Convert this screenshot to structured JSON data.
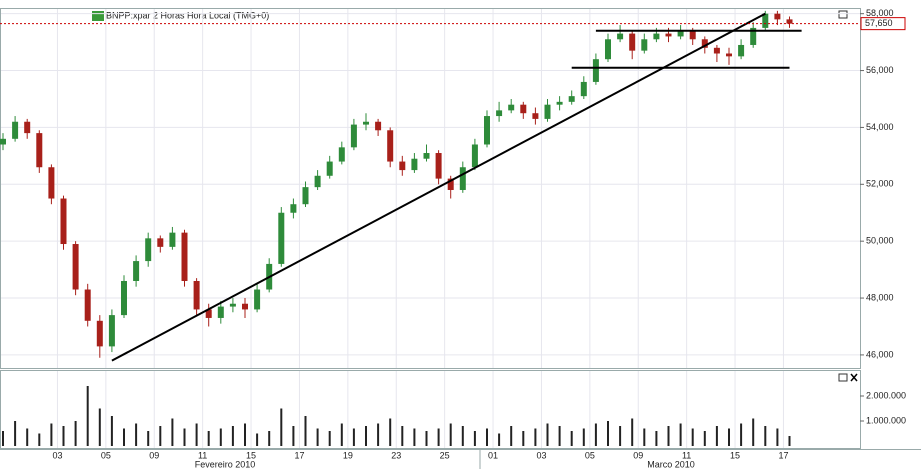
{
  "chart_data": {
    "type": "candlestick",
    "title": "BNPP:xpar 2 Horas Hora Local (TMG+0)",
    "categories": [
      null,
      null,
      null,
      null,
      null,
      "03",
      null,
      null,
      null,
      "05",
      null,
      null,
      null,
      "09",
      null,
      null,
      null,
      "11",
      null,
      null,
      null,
      "15",
      null,
      null,
      null,
      "17",
      null,
      null,
      null,
      "19",
      null,
      null,
      null,
      "23",
      null,
      null,
      null,
      "25",
      null,
      null,
      null,
      "01",
      null,
      null,
      null,
      "03",
      null,
      null,
      null,
      "05",
      null,
      null,
      null,
      "09",
      null,
      null,
      null,
      "11",
      null,
      null,
      null,
      "15",
      null,
      null,
      null,
      "17"
    ],
    "months": [
      "Fevereiro 2010",
      "Marco 2010"
    ],
    "open": [
      53400,
      53600,
      54200,
      53800,
      52600,
      51500,
      49900,
      48300,
      47200,
      46300,
      47400,
      48600,
      49300,
      50100,
      49800,
      50300,
      48600,
      47600,
      47300,
      47700,
      47800,
      47600,
      48300,
      49200,
      51000,
      51300,
      51900,
      52300,
      52800,
      53300,
      54100,
      54200,
      53900,
      52800,
      52500,
      52900,
      53100,
      52200,
      51800,
      52600,
      53400,
      54400,
      54600,
      54800,
      54500,
      54300,
      54800,
      54900,
      55100,
      55600,
      56400,
      57100,
      57300,
      56700,
      57100,
      57300,
      57200,
      57400,
      57100,
      56800,
      56600,
      56500,
      56900,
      57500,
      58000,
      57800
    ],
    "high": [
      53800,
      54400,
      54300,
      53900,
      52700,
      51600,
      50000,
      48500,
      47400,
      47600,
      48800,
      49500,
      50300,
      50200,
      50500,
      50400,
      48700,
      47800,
      47900,
      48000,
      48000,
      48500,
      49400,
      51200,
      51500,
      52100,
      52500,
      53000,
      53500,
      54300,
      54500,
      54300,
      54000,
      53000,
      53100,
      53400,
      53200,
      52300,
      52800,
      53600,
      54600,
      54900,
      55000,
      54900,
      54700,
      55000,
      55100,
      55300,
      55800,
      56600,
      57300,
      57600,
      57400,
      57300,
      57500,
      57500,
      57600,
      57500,
      57200,
      56900,
      56800,
      57100,
      57700,
      58100,
      58100,
      57900
    ],
    "low": [
      53200,
      53500,
      53600,
      52400,
      51300,
      49700,
      48100,
      47000,
      45900,
      46100,
      47300,
      48400,
      49100,
      49600,
      49700,
      48400,
      47400,
      47000,
      47100,
      47500,
      47300,
      47500,
      48200,
      49100,
      50800,
      51200,
      51800,
      52200,
      52700,
      53200,
      53900,
      53700,
      52600,
      52300,
      52400,
      52800,
      52000,
      51500,
      51700,
      52500,
      53300,
      54200,
      54500,
      54300,
      54100,
      54200,
      54600,
      54800,
      55000,
      55500,
      56300,
      57000,
      56400,
      56600,
      57000,
      57000,
      57100,
      56900,
      56600,
      56300,
      56200,
      56400,
      56800,
      57400,
      57600,
      57500
    ],
    "close": [
      53600,
      54200,
      53800,
      52600,
      51500,
      49900,
      48300,
      47200,
      46300,
      47400,
      48600,
      49300,
      50100,
      49800,
      50300,
      48600,
      47600,
      47300,
      47700,
      47800,
      47600,
      48300,
      49200,
      51000,
      51300,
      51900,
      52300,
      52800,
      53300,
      54100,
      54200,
      53900,
      52800,
      52500,
      52900,
      53100,
      52200,
      51800,
      52600,
      53400,
      54400,
      54600,
      54800,
      54500,
      54300,
      54800,
      54900,
      55100,
      55600,
      56400,
      57100,
      57300,
      56700,
      57100,
      57300,
      57200,
      57400,
      57100,
      56800,
      56600,
      56500,
      56900,
      57500,
      58000,
      57800,
      57650
    ],
    "volume": [
      600000,
      1000000,
      700000,
      500000,
      900000,
      800000,
      1000000,
      2400000,
      1500000,
      1200000,
      700000,
      900000,
      600000,
      800000,
      1100000,
      700000,
      900000,
      600000,
      700000,
      800000,
      900000,
      500000,
      600000,
      1500000,
      800000,
      1200000,
      700000,
      600000,
      900000,
      700000,
      800000,
      900000,
      1100000,
      800000,
      700000,
      600000,
      700000,
      900000,
      800000,
      600000,
      700000,
      500000,
      800000,
      600000,
      700000,
      900000,
      800000,
      600000,
      700000,
      900000,
      1000000,
      800000,
      1100000,
      700000,
      600000,
      800000,
      900000,
      700000,
      600000,
      800000,
      700000,
      900000,
      1100000,
      800000,
      700000,
      400000
    ],
    "up_color": "#2e8b3a",
    "down_color": "#a8201a",
    "volume_color": "#222222",
    "ylim": [
      45540,
      58200
    ],
    "yticks": [
      {
        "value": 46000,
        "label": "46,000"
      },
      {
        "value": 48000,
        "label": "48,000"
      },
      {
        "value": 50000,
        "label": "50,000"
      },
      {
        "value": 52000,
        "label": "52,000"
      },
      {
        "value": 54000,
        "label": "54,000"
      },
      {
        "value": 56000,
        "label": "56,000"
      },
      {
        "value": 58000,
        "label": "58,000"
      }
    ],
    "volume_ylim": [
      0,
      3000000
    ],
    "volume_yticks": [
      {
        "value": 1000000,
        "label": "1.000.000"
      },
      {
        "value": 2000000,
        "label": "2.000.000"
      }
    ],
    "last_price": {
      "value": 57650,
      "label": "57,650"
    },
    "trend_lines": [
      {
        "x": [
          9,
          63
        ],
        "y": [
          45800,
          58000
        ]
      },
      {
        "x": [
          49,
          66
        ],
        "y": [
          57400,
          57400
        ]
      },
      {
        "x": [
          47,
          65
        ],
        "y": [
          56100,
          56100
        ]
      }
    ],
    "grid": true
  }
}
